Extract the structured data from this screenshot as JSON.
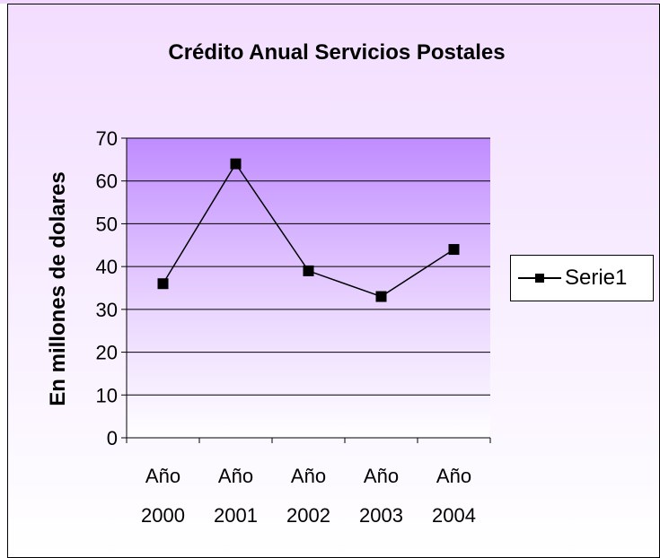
{
  "chart_data": {
    "type": "line",
    "title": "Crédito Anual Servicios Postales",
    "ylabel": "En millones de dolares",
    "xlabel": "",
    "categories": [
      [
        "Año",
        "2000"
      ],
      [
        "Año",
        "2001"
      ],
      [
        "Año",
        "2002"
      ],
      [
        "Año",
        "2003"
      ],
      [
        "Año",
        "2004"
      ]
    ],
    "series": [
      {
        "name": "Serie1",
        "values": [
          36,
          64,
          39,
          33,
          44
        ]
      }
    ],
    "ylim": [
      0,
      70
    ],
    "yticks": [
      0,
      10,
      20,
      30,
      40,
      50,
      60,
      70
    ],
    "grid": true,
    "legend_position": "right",
    "plot_gradient": [
      "#c08cff",
      "#ffffff"
    ]
  }
}
